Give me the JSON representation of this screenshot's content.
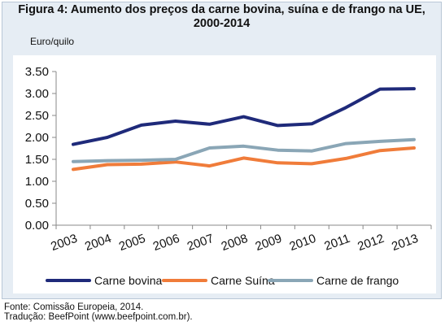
{
  "figure": {
    "title_line1": "Figura 4: Aumento dos preços da carne bovina, suína e de frango na UE,",
    "title_line2": "2000-2014",
    "unit_label": "Euro/quilo"
  },
  "chart_data": {
    "type": "line",
    "x": [
      "2003",
      "2004",
      "2005",
      "2006",
      "2007",
      "2008",
      "2009",
      "2010",
      "2011",
      "2012",
      "2013"
    ],
    "ylim": [
      0,
      3.5
    ],
    "yticks": [
      "0.00",
      "0.50",
      "1.00",
      "1.50",
      "2.00",
      "2.50",
      "3.00",
      "3.50"
    ],
    "grid": false,
    "legend_position": "bottom",
    "series": [
      {
        "name": "Carne bovina",
        "color": "#1f2a7a",
        "values": [
          1.84,
          2.0,
          2.28,
          2.37,
          2.3,
          2.47,
          2.27,
          2.31,
          2.68,
          3.1,
          3.11
        ]
      },
      {
        "name": "Carne Suína",
        "color": "#f07c3a",
        "values": [
          1.27,
          1.38,
          1.39,
          1.44,
          1.35,
          1.53,
          1.42,
          1.4,
          1.52,
          1.7,
          1.76
        ]
      },
      {
        "name": "Carne de frango",
        "color": "#8aa6b6",
        "values": [
          1.45,
          1.47,
          1.48,
          1.5,
          1.76,
          1.8,
          1.71,
          1.69,
          1.86,
          1.91,
          1.95
        ]
      }
    ]
  },
  "footer": {
    "source": "Fonte: Comissão Europeia, 2014.",
    "translation": "Tradução: BeefPoint (www.beefpoint.com.br)."
  }
}
